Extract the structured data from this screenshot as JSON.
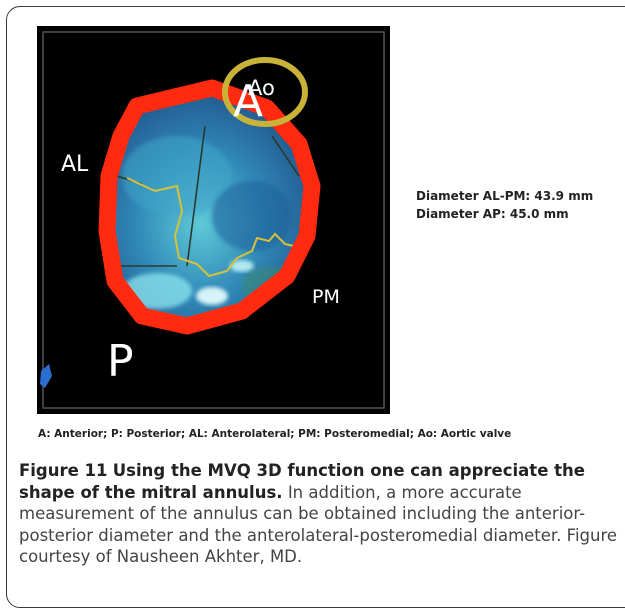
{
  "image": {
    "labels": {
      "al": "AL",
      "pm": "PM",
      "p": "P",
      "a": "A",
      "ao": "Ao"
    }
  },
  "measurements": {
    "al_pm": "Diameter AL-PM: 43.9 mm",
    "ap": "Diameter AP: 45.0 mm"
  },
  "legend": "A: Anterior; P: Posterior; AL: Anterolateral; PM: Posteromedial; Ao: Aortic valve",
  "caption": {
    "label": "Figure 11",
    "title": "Using the MVQ 3D function one can appreciate the shape of the mitral annulus.",
    "body": "In addition, a more accurate measurement of the annulus can be obtained including the anterior-posterior diameter and the anterolateral-posteromedial diameter. Figure courtesy of Nausheen Akhter, MD."
  },
  "colors": {
    "annulus": "#ff2a10",
    "aortic_ring": "#c8b338",
    "leaflet": "#2f86b5",
    "coaptation": "#d6c13a"
  }
}
